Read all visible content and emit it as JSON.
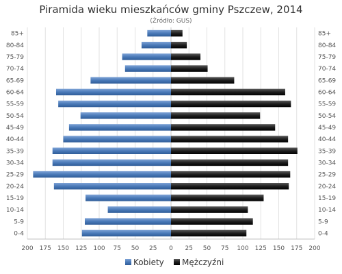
{
  "chart_data": {
    "type": "bar",
    "orientation": "horizontal",
    "title": "Piramida wieku mieszkańców gminy Pszczew, 2014",
    "subtitle": "(Źródło: GUS)",
    "categories": [
      "85+",
      "80-84",
      "75-79",
      "70-74",
      "65-69",
      "60-64",
      "55-59",
      "50-54",
      "45-49",
      "40-44",
      "35-39",
      "30-34",
      "25-29",
      "20-24",
      "15-19",
      "10-14",
      "5-9",
      "0-4"
    ],
    "series": [
      {
        "name": "Kobiety",
        "color": "#4a7ab8",
        "values": [
          33,
          41,
          68,
          64,
          112,
          160,
          157,
          126,
          142,
          150,
          165,
          165,
          192,
          163,
          119,
          88,
          120,
          124
        ]
      },
      {
        "name": "Mężczyźni",
        "color": "#1a1a1a",
        "values": [
          16,
          22,
          41,
          51,
          88,
          159,
          167,
          124,
          145,
          163,
          176,
          163,
          166,
          164,
          129,
          107,
          114,
          105
        ]
      }
    ],
    "xlim": [
      -200,
      200
    ],
    "xticks": [
      -200,
      -175,
      -150,
      -125,
      -100,
      -75,
      -50,
      -25,
      0,
      25,
      50,
      75,
      100,
      125,
      150,
      175,
      200
    ],
    "xtick_labels": [
      "200",
      "175",
      "150",
      "125",
      "100",
      "75",
      "50",
      "25",
      "0",
      "25",
      "50",
      "75",
      "100",
      "125",
      "150",
      "175",
      "200"
    ],
    "grid": true,
    "legend_position": "bottom-center",
    "category_axis_labels": "both-sides"
  }
}
